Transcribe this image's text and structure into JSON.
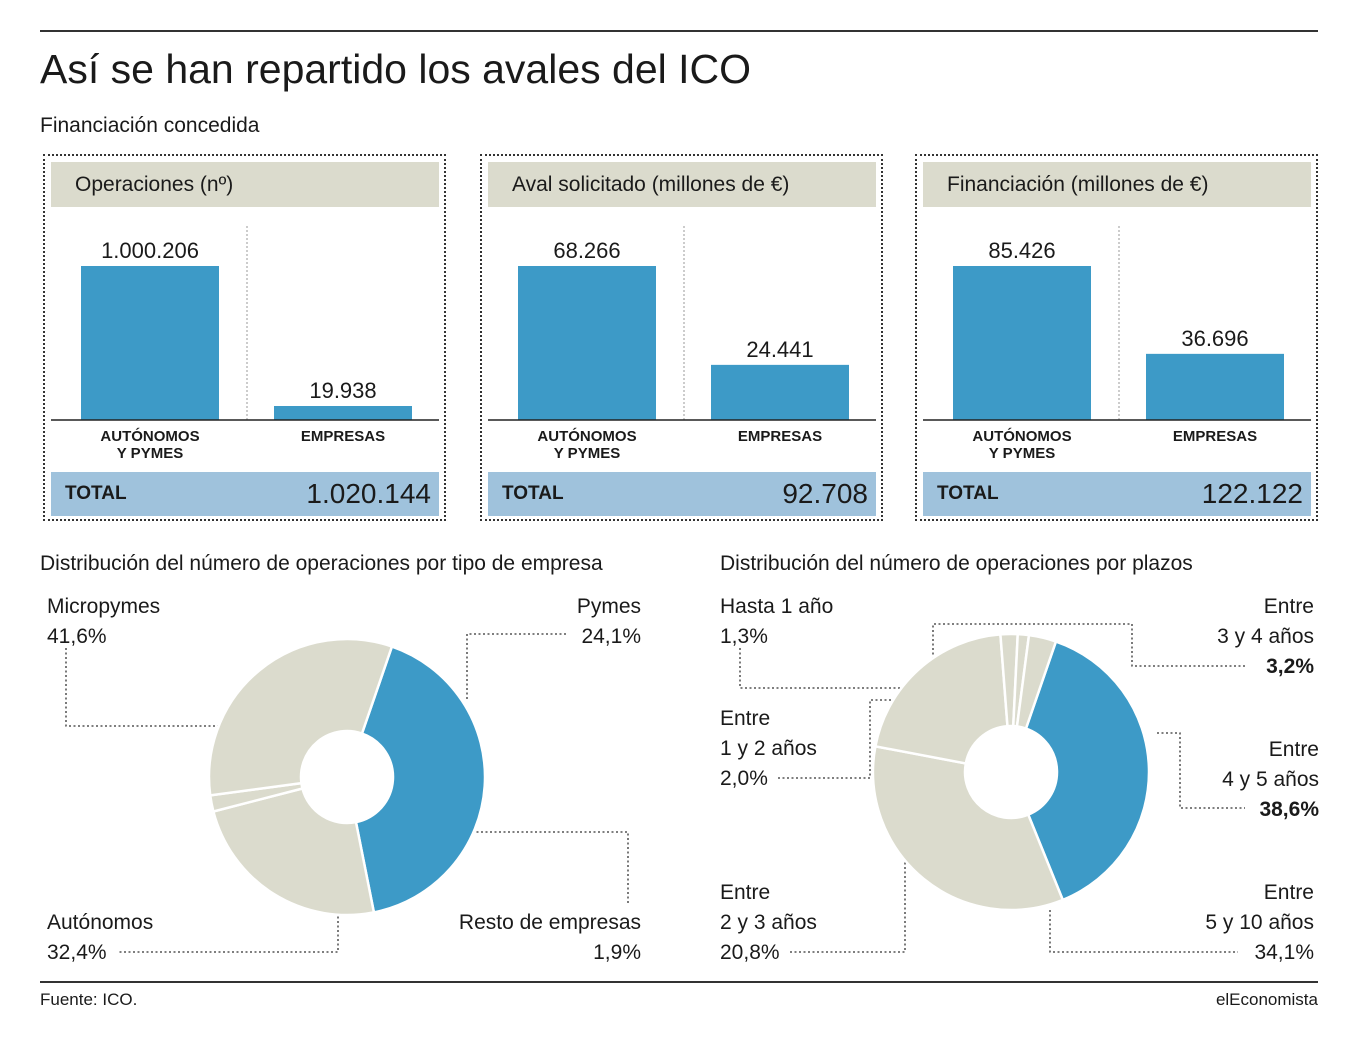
{
  "header": {
    "title": "Así se han repartido los avales del ICO",
    "subtitle": "Financiación concedida"
  },
  "panels": [
    {
      "title": "Operaciones (nº)",
      "categories": [
        "AUTÓNOMOS Y PYMES",
        "EMPRESAS"
      ],
      "cat_lines": [
        [
          "AUTÓNOMOS",
          "Y PYMES"
        ],
        [
          "EMPRESAS"
        ]
      ],
      "values": [
        1000206,
        19938
      ],
      "value_labels": [
        "1.000.206",
        "19.938"
      ],
      "total_label": "TOTAL",
      "total_value": "1.020.144"
    },
    {
      "title": "Aval solicitado (millones de €)",
      "categories": [
        "AUTÓNOMOS Y PYMES",
        "EMPRESAS"
      ],
      "cat_lines": [
        [
          "AUTÓNOMOS",
          "Y PYMES"
        ],
        [
          "EMPRESAS"
        ]
      ],
      "values": [
        68266,
        24441
      ],
      "value_labels": [
        "68.266",
        "24.441"
      ],
      "total_label": "TOTAL",
      "total_value": "92.708"
    },
    {
      "title": "Financiación (millones de €)",
      "categories": [
        "AUTÓNOMOS Y PYMES",
        "EMPRESAS"
      ],
      "cat_lines": [
        [
          "AUTÓNOMOS",
          "Y PYMES"
        ],
        [
          "EMPRESAS"
        ]
      ],
      "values": [
        85426,
        36696
      ],
      "value_labels": [
        "85.426",
        "36.696"
      ],
      "total_label": "TOTAL",
      "total_value": "122.122"
    }
  ],
  "section1": {
    "title": "Distribución del número de operaciones por tipo de empresa",
    "labels": {
      "micropymes_name": "Micropymes",
      "micropymes_value": "41,6%",
      "pymes_name": "Pymes",
      "pymes_value": "24,1%",
      "autonomos_name": "Autónomos",
      "autonomos_value": "32,4%",
      "resto_name": "Resto de empresas",
      "resto_value": "1,9%"
    }
  },
  "section2": {
    "title": "Distribución del número de operaciones por plazos",
    "labels": {
      "hasta1_name": "Hasta 1 año",
      "hasta1_value": "1,3%",
      "e12_l1": "Entre",
      "e12_l2": "1 y 2 años",
      "e12_value": "2,0%",
      "e23_l1": "Entre",
      "e23_l2": "2 y 3 años",
      "e23_value": "20,8%",
      "e34_l1": "Entre",
      "e34_l2": "3 y 4 años",
      "e34_value": "3,2%",
      "e45_l1": "Entre",
      "e45_l2": "4 y 5 años",
      "e45_value": "38,6%",
      "e510_l1": "Entre",
      "e510_l2": "5 y 10 años",
      "e510_value": "34,1%"
    }
  },
  "footer": {
    "source": "Fuente: ICO.",
    "brand": "elEconomista"
  },
  "colors": {
    "blue": "#3d9ac7",
    "beige": "#dbdbcd",
    "total_bar": "#9fc2dc"
  },
  "chart_data": [
    {
      "type": "bar",
      "title": "Operaciones (nº)",
      "categories": [
        "AUTÓNOMOS Y PYMES",
        "EMPRESAS"
      ],
      "values": [
        1000206,
        19938
      ]
    },
    {
      "type": "bar",
      "title": "Aval solicitado (millones de €)",
      "categories": [
        "AUTÓNOMOS Y PYMES",
        "EMPRESAS"
      ],
      "values": [
        68266,
        24441
      ]
    },
    {
      "type": "bar",
      "title": "Financiación (millones de €)",
      "categories": [
        "AUTÓNOMOS Y PYMES",
        "EMPRESAS"
      ],
      "values": [
        85426,
        36696
      ]
    },
    {
      "type": "pie",
      "title": "Distribución del número de operaciones por tipo de empresa",
      "slices": [
        {
          "label": "Micropymes",
          "value": 41.6,
          "color": "#3d9ac7"
        },
        {
          "label": "Pymes",
          "value": 24.1,
          "color": "#dbdbcd"
        },
        {
          "label": "Resto de empresas",
          "value": 1.9,
          "color": "#dbdbcd"
        },
        {
          "label": "Autónomos",
          "value": 32.4,
          "color": "#dbdbcd"
        }
      ]
    },
    {
      "type": "pie",
      "title": "Distribución del número de operaciones por plazos",
      "slices": [
        {
          "label": "Entre 4 y 5 años",
          "value": 38.6,
          "color": "#3d9ac7"
        },
        {
          "label": "Entre 5 y 10 años",
          "value": 34.1,
          "color": "#dbdbcd"
        },
        {
          "label": "Entre 2 y 3 años",
          "value": 20.8,
          "color": "#dbdbcd"
        },
        {
          "label": "Entre 1 y 2 años",
          "value": 2.0,
          "color": "#dbdbcd"
        },
        {
          "label": "Hasta 1 año",
          "value": 1.3,
          "color": "#dbdbcd"
        },
        {
          "label": "Entre 3 y 4 años",
          "value": 3.2,
          "color": "#dbdbcd"
        }
      ]
    }
  ]
}
